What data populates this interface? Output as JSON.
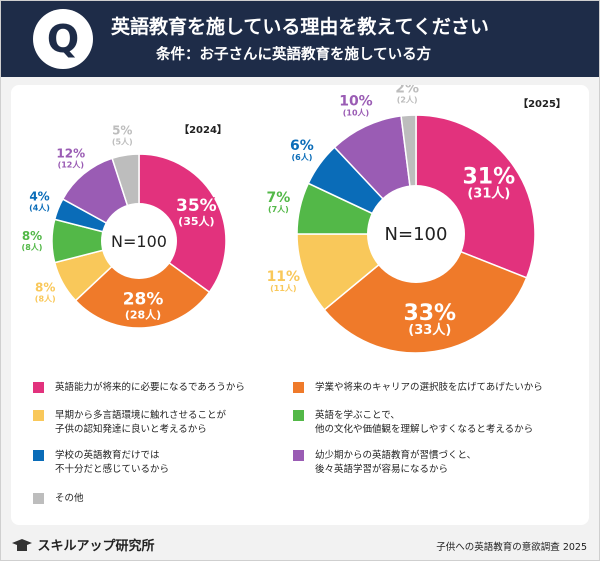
{
  "header": {
    "q": "Q",
    "title": "英語教育を施している理由を教えてください",
    "subtitle": "条件：お子さんに英語教育を施している方"
  },
  "chart_data": [
    {
      "type": "pie",
      "year_label": "【2024】",
      "center_label": "N=100",
      "slices": [
        {
          "name": "英語能力が将来的に必要になるであろうから",
          "value": 35,
          "pct": "35%",
          "count": "(35人)",
          "color": "#e2327d"
        },
        {
          "name": "学業や将来のキャリアの選択肢を広げてあげたいから",
          "value": 28,
          "pct": "28%",
          "count": "(28人)",
          "color": "#ef7a2a"
        },
        {
          "name": "早期から多言語環境に触れさせることが子供の認知発達に良いと考えるから",
          "value": 8,
          "pct": "8%",
          "count": "(8人)",
          "color": "#f9c85a"
        },
        {
          "name": "英語を学ぶことで、他の文化や価値観を理解しやすくなると考えるから",
          "value": 8,
          "pct": "8%",
          "count": "(8人)",
          "color": "#53b848"
        },
        {
          "name": "学校の英語教育だけでは不十分だと感じているから",
          "value": 4,
          "pct": "4%",
          "count": "(4人)",
          "color": "#0a6cb8"
        },
        {
          "name": "幼少期からの英語教育が習慣づくと、後々英語学習が容易になるから",
          "value": 12,
          "pct": "12%",
          "count": "(12人)",
          "color": "#9a5cb4"
        },
        {
          "name": "その他",
          "value": 5,
          "pct": "5%",
          "count": "(5人)",
          "color": "#bdbdbd"
        }
      ]
    },
    {
      "type": "pie",
      "year_label": "【2025】",
      "center_label": "N=100",
      "slices": [
        {
          "name": "英語能力が将来的に必要になるであろうから",
          "value": 31,
          "pct": "31%",
          "count": "(31人)",
          "color": "#e2327d"
        },
        {
          "name": "学業や将来のキャリアの選択肢を広げてあげたいから",
          "value": 33,
          "pct": "33%",
          "count": "(33人)",
          "color": "#ef7a2a"
        },
        {
          "name": "早期から多言語環境に触れさせることが子供の認知発達に良いと考えるから",
          "value": 11,
          "pct": "11%",
          "count": "(11人)",
          "color": "#f9c85a"
        },
        {
          "name": "英語を学ぶことで、他の文化や価値観を理解しやすくなると考えるから",
          "value": 7,
          "pct": "7%",
          "count": "(7人)",
          "color": "#53b848"
        },
        {
          "name": "学校の英語教育だけでは不十分だと感じているから",
          "value": 6,
          "pct": "6%",
          "count": "(6人)",
          "color": "#0a6cb8"
        },
        {
          "name": "幼少期からの英語教育が習慣づくと、後々英語学習が容易になるから",
          "value": 10,
          "pct": "10%",
          "count": "(10人)",
          "color": "#9a5cb4"
        },
        {
          "name": "その他",
          "value": 2,
          "pct": "2%",
          "count": "(2人)",
          "color": "#bdbdbd"
        }
      ]
    }
  ],
  "legend": [
    {
      "line1": "英語能力が将来的に必要になるであろうから",
      "line2": "",
      "color": "#e2327d"
    },
    {
      "line1": "学業や将来のキャリアの選択肢を広げてあげたいから",
      "line2": "",
      "color": "#ef7a2a"
    },
    {
      "line1": "早期から多言語環境に触れさせることが",
      "line2": "子供の認知発達に良いと考えるから",
      "color": "#f9c85a"
    },
    {
      "line1": "英語を学ぶことで、",
      "line2": "他の文化や価値観を理解しやすくなると考えるから",
      "color": "#53b848"
    },
    {
      "line1": "学校の英語教育だけでは",
      "line2": "不十分だと感じているから",
      "color": "#0a6cb8"
    },
    {
      "line1": "幼少期からの英語教育が習慣づくと、",
      "line2": "後々英語学習が容易になるから",
      "color": "#9a5cb4"
    },
    {
      "line1": "その他",
      "line2": "",
      "color": "#bdbdbd"
    }
  ],
  "footer": {
    "logo_text": "スキルアップ研究所",
    "source": "子供への英語教育の意欲調査 2025"
  }
}
